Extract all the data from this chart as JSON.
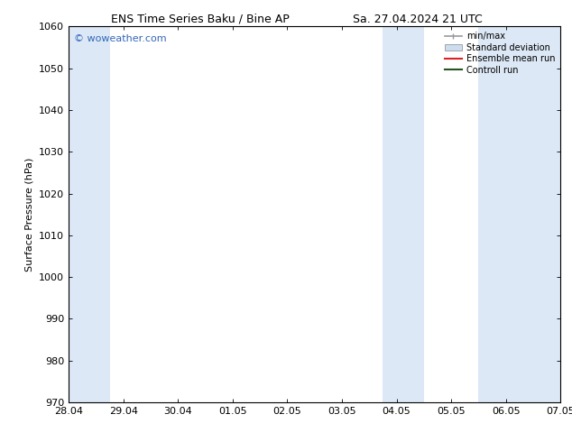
{
  "title_left": "ENS Time Series Baku / Bine AP",
  "title_right": "Sa. 27.04.2024 21 UTC",
  "ylabel": "Surface Pressure (hPa)",
  "ylim": [
    970,
    1060
  ],
  "yticks": [
    970,
    980,
    990,
    1000,
    1010,
    1020,
    1030,
    1040,
    1050,
    1060
  ],
  "xtick_labels": [
    "28.04",
    "29.04",
    "30.04",
    "01.05",
    "02.05",
    "03.05",
    "04.05",
    "05.05",
    "06.05",
    "07.05"
  ],
  "xtick_positions": [
    0,
    1,
    2,
    3,
    4,
    5,
    6,
    7,
    8,
    9
  ],
  "xlim": [
    0,
    9
  ],
  "shaded_bands": [
    {
      "x_start": 0.0,
      "x_end": 0.75,
      "color": "#dce8f5"
    },
    {
      "x_start": 5.75,
      "x_end": 6.5,
      "color": "#dce8f5"
    },
    {
      "x_start": 7.5,
      "x_end": 9.0,
      "color": "#dce8f5"
    }
  ],
  "background_color": "#ffffff",
  "plot_bg_color": "#ffffff",
  "watermark_text": "© woweather.com",
  "watermark_color": "#3366bb",
  "legend_items": [
    {
      "label": "min/max",
      "color": "#999999",
      "style": "errorbar"
    },
    {
      "label": "Standard deviation",
      "color": "#ccddf0",
      "style": "box"
    },
    {
      "label": "Ensemble mean run",
      "color": "#dd2222",
      "style": "line"
    },
    {
      "label": "Controll run",
      "color": "#225522",
      "style": "line"
    }
  ],
  "figsize": [
    6.34,
    4.9
  ],
  "dpi": 100,
  "title_fontsize": 9,
  "label_fontsize": 8,
  "tick_fontsize": 8,
  "watermark_fontsize": 8,
  "legend_fontsize": 7
}
